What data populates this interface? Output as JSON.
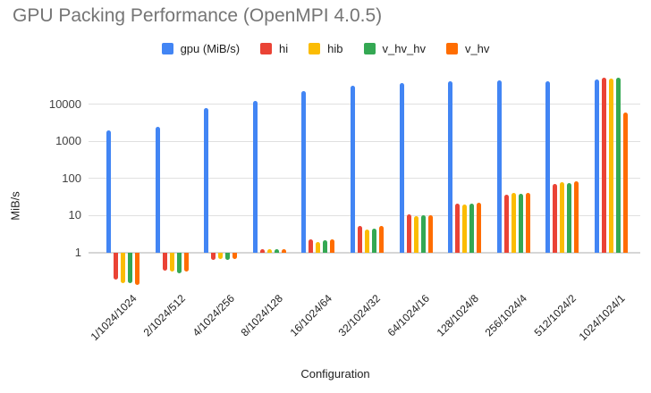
{
  "chart_data": {
    "type": "bar",
    "title": "GPU Packing Performance (OpenMPI 4.0.5)",
    "xlabel": "Configuration",
    "ylabel": "MiB/s",
    "y_scale": "log",
    "y_baseline": 1,
    "y_ticks": [
      1,
      10,
      100,
      1000,
      10000
    ],
    "ylim": [
      0.125,
      58000
    ],
    "grid": true,
    "legend_position": "top",
    "categories": [
      "1/1024/1024",
      "2/1024/512",
      "4/1024/256",
      "8/1024/128",
      "16/1024/64",
      "32/1024/32",
      "64/1024/16",
      "128/1024/8",
      "256/1024/4",
      "512/1024/2",
      "1024/1024/1"
    ],
    "series": [
      {
        "name": "gpu (MiB/s)",
        "color": "#4285F4",
        "values": [
          2000,
          2500,
          7700,
          12000,
          22000,
          31000,
          38000,
          42000,
          44000,
          41000,
          46000
        ]
      },
      {
        "name": "hi",
        "color": "#EA4335",
        "values": [
          0.19,
          0.33,
          0.62,
          1.25,
          2.25,
          5.1,
          10.4,
          21,
          36,
          72,
          51000
        ]
      },
      {
        "name": "hib",
        "color": "#FBBC04",
        "values": [
          0.15,
          0.3,
          0.65,
          1.2,
          1.9,
          4.1,
          9.8,
          20,
          40,
          80,
          48000
        ]
      },
      {
        "name": "v_hv_hv",
        "color": "#34A853",
        "values": [
          0.145,
          0.27,
          0.63,
          1.2,
          2.15,
          4.4,
          10,
          20.5,
          39,
          76,
          51000
        ]
      },
      {
        "name": "v_hv",
        "color": "#FF6D01",
        "values": [
          0.135,
          0.3,
          0.65,
          1.25,
          2.3,
          5.1,
          10,
          21.5,
          40,
          85,
          6000
        ]
      }
    ]
  }
}
